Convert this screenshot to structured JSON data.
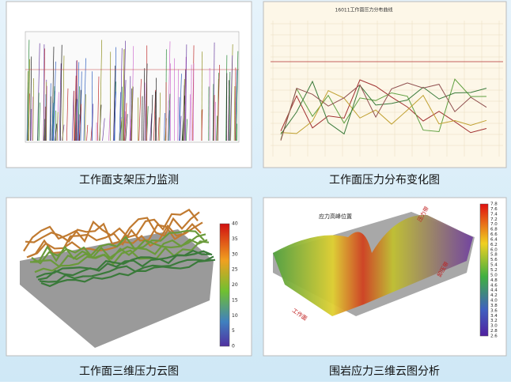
{
  "panels": [
    {
      "caption": "工作面支架压力监测"
    },
    {
      "caption": "工作面压力分布变化图",
      "chart_title": "16011工作面压力分布曲线"
    },
    {
      "caption": "工作面三维压力云图",
      "colorbar_ticks": [
        "40",
        "35",
        "30",
        "25",
        "20",
        "15",
        "10",
        "5",
        "0"
      ]
    },
    {
      "caption": "围岩应力三维云图分析",
      "labels": [
        "应力高峰位置",
        "压力带",
        "卸压带",
        "工作面"
      ],
      "colorbar_ticks": [
        "7.8",
        "7.6",
        "7.4",
        "7.2",
        "7.0",
        "6.8",
        "6.6",
        "6.4",
        "6.2",
        "6.0",
        "5.8",
        "5.6",
        "5.4",
        "5.2",
        "5.0",
        "4.8",
        "4.6",
        "4.4",
        "4.2",
        "4.0",
        "3.8",
        "3.6",
        "3.4",
        "3.2",
        "3.0",
        "2.8",
        "2.6"
      ]
    }
  ]
}
